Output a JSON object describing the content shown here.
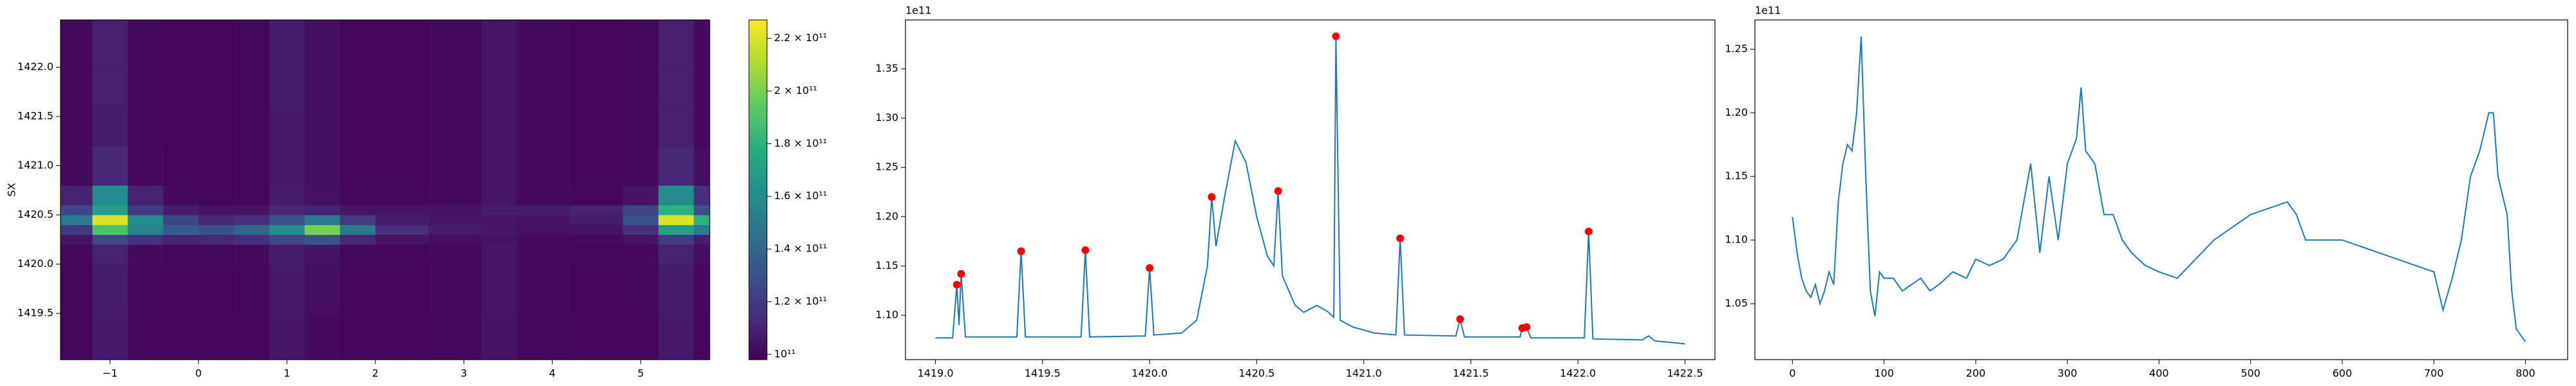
{
  "chart_data": [
    {
      "type": "heatmap",
      "ylabel": "SX",
      "colormap": "viridis",
      "xlim": [
        -1.56,
        5.78
      ],
      "ylim": [
        1419.03,
        1422.48
      ],
      "xticks": [
        {
          "value": -1,
          "label": "−1"
        },
        0,
        1,
        2,
        3,
        4,
        5
      ],
      "yticks": [
        1419.5,
        {
          "value": 1420.0,
          "label": "1420.0"
        },
        1420.5,
        {
          "value": 1421.0,
          "label": "1421.0"
        },
        1421.5,
        {
          "value": 1422.0,
          "label": "1422.0"
        }
      ],
      "x_edges": [
        -1.56,
        -1.2,
        -0.8,
        -0.4,
        0,
        0.4,
        0.8,
        1.2,
        1.6,
        2.0,
        2.6,
        3.2,
        3.6,
        4.2,
        4.8,
        5.2,
        5.6,
        5.78
      ],
      "y_edges": [
        1419.03,
        1419.5,
        1420.0,
        1420.2,
        1420.3,
        1420.4,
        1420.5,
        1420.6,
        1420.8,
        1421.2,
        1421.6,
        1422.0,
        1422.48
      ],
      "z": [
        [
          100000000000.0,
          107000000000.0,
          100000000000.0,
          100000000000.0,
          100000000000.0,
          100000000000.0,
          106000000000.0,
          102000000000.0,
          100000000000.0,
          100000000000.0,
          101000000000.0,
          105000000000.0,
          101000000000.0,
          100000000000.0,
          100000000000.0,
          107000000000.0,
          101000000000.0
        ],
        [
          100000000000.0,
          108000000000.0,
          101000000000.0,
          100000000000.0,
          100000000000.0,
          101000000000.0,
          107000000000.0,
          103000000000.0,
          100000000000.0,
          100000000000.0,
          102000000000.0,
          106000000000.0,
          102000000000.0,
          100000000000.0,
          101000000000.0,
          108000000000.0,
          102000000000.0
        ],
        [
          101000000000.0,
          110000000000.0,
          102000000000.0,
          101000000000.0,
          101000000000.0,
          102000000000.0,
          108000000000.0,
          105000000000.0,
          101000000000.0,
          101000000000.0,
          102000000000.0,
          106000000000.0,
          102000000000.0,
          101000000000.0,
          102000000000.0,
          110000000000.0,
          103000000000.0
        ],
        [
          105000000000.0,
          125000000000.0,
          115000000000.0,
          110000000000.0,
          112000000000.0,
          115000000000.0,
          125000000000.0,
          130000000000.0,
          112000000000.0,
          105000000000.0,
          103000000000.0,
          105000000000.0,
          102000000000.0,
          102000000000.0,
          105000000000.0,
          120000000000.0,
          108000000000.0
        ],
        [
          120000000000.0,
          190000000000.0,
          155000000000.0,
          135000000000.0,
          130000000000.0,
          140000000000.0,
          160000000000.0,
          200000000000.0,
          150000000000.0,
          115000000000.0,
          108000000000.0,
          106000000000.0,
          104000000000.0,
          105000000000.0,
          115000000000.0,
          170000000000.0,
          150000000000.0
        ],
        [
          150000000000.0,
          220000000000.0,
          160000000000.0,
          125000000000.0,
          112000000000.0,
          115000000000.0,
          130000000000.0,
          150000000000.0,
          120000000000.0,
          108000000000.0,
          106000000000.0,
          106000000000.0,
          105000000000.0,
          108000000000.0,
          130000000000.0,
          220000000000.0,
          180000000000.0
        ],
        [
          125000000000.0,
          170000000000.0,
          120000000000.0,
          108000000000.0,
          105000000000.0,
          105000000000.0,
          112000000000.0,
          110000000000.0,
          105000000000.0,
          105000000000.0,
          105000000000.0,
          108000000000.0,
          108000000000.0,
          110000000000.0,
          125000000000.0,
          180000000000.0,
          130000000000.0
        ],
        [
          110000000000.0,
          160000000000.0,
          110000000000.0,
          102000000000.0,
          100000000000.0,
          101000000000.0,
          108000000000.0,
          104000000000.0,
          101000000000.0,
          101000000000.0,
          102000000000.0,
          106000000000.0,
          102000000000.0,
          101000000000.0,
          105000000000.0,
          160000000000.0,
          115000000000.0
        ],
        [
          102000000000.0,
          112000000000.0,
          102000000000.0,
          100000000000.0,
          100000000000.0,
          101000000000.0,
          107000000000.0,
          103000000000.0,
          100000000000.0,
          100000000000.0,
          102000000000.0,
          106000000000.0,
          102000000000.0,
          100000000000.0,
          101000000000.0,
          112000000000.0,
          103000000000.0
        ],
        [
          101000000000.0,
          108000000000.0,
          101000000000.0,
          100000000000.0,
          100000000000.0,
          101000000000.0,
          107000000000.0,
          103000000000.0,
          100000000000.0,
          100000000000.0,
          102000000000.0,
          106000000000.0,
          102000000000.0,
          100000000000.0,
          101000000000.0,
          109000000000.0,
          102000000000.0
        ],
        [
          101000000000.0,
          109000000000.0,
          101000000000.0,
          100000000000.0,
          100000000000.0,
          101000000000.0,
          108000000000.0,
          103000000000.0,
          100000000000.0,
          100000000000.0,
          102000000000.0,
          106000000000.0,
          102000000000.0,
          100000000000.0,
          101000000000.0,
          109000000000.0,
          102000000000.0
        ],
        [
          101000000000.0,
          109000000000.0,
          101000000000.0,
          100000000000.0,
          100000000000.0,
          101000000000.0,
          108000000000.0,
          103000000000.0,
          100000000000.0,
          100000000000.0,
          102000000000.0,
          106000000000.0,
          102000000000.0,
          100000000000.0,
          101000000000.0,
          109000000000.0,
          102000000000.0
        ]
      ],
      "clim": [
        98000000000.0,
        227000000000.0
      ],
      "cticks": [
        {
          "value": 100000000000.0,
          "label": "10¹¹"
        },
        {
          "value": 120000000000.0,
          "label": "1.2 × 10¹¹"
        },
        {
          "value": 140000000000.0,
          "label": "1.4 × 10¹¹"
        },
        {
          "value": 160000000000.0,
          "label": "1.6 × 10¹¹"
        },
        {
          "value": 180000000000.0,
          "label": "1.8 × 10¹¹"
        },
        {
          "value": 200000000000.0,
          "label": "2 × 10¹¹"
        },
        {
          "value": 220000000000.0,
          "label": "2.2 × 10¹¹"
        }
      ]
    },
    {
      "type": "line",
      "y_offset_label": "1e11",
      "xlim": [
        1418.86,
        1422.64
      ],
      "ylim": [
        1.055,
        1.3996
      ],
      "xticks": [
        {
          "value": 1419.0,
          "label": "1419.0"
        },
        1419.5,
        {
          "value": 1420.0,
          "label": "1420.0"
        },
        1420.5,
        {
          "value": 1421.0,
          "label": "1421.0"
        },
        1421.5,
        {
          "value": 1422.0,
          "label": "1422.0"
        },
        1422.5
      ],
      "yticks": [
        {
          "value": 1.1,
          "label": "1.10"
        },
        1.15,
        {
          "value": 1.2,
          "label": "1.20"
        },
        1.25,
        {
          "value": 1.3,
          "label": "1.30"
        },
        1.35
      ],
      "series": [
        {
          "color": "#1f77b4",
          "x": [
            1419.0,
            1419.08,
            1419.1,
            1419.11,
            1419.12,
            1419.14,
            1419.38,
            1419.4,
            1419.42,
            1419.68,
            1419.7,
            1419.72,
            1419.98,
            1420.0,
            1420.02,
            1420.15,
            1420.22,
            1420.27,
            1420.29,
            1420.31,
            1420.35,
            1420.4,
            1420.45,
            1420.5,
            1420.55,
            1420.58,
            1420.6,
            1420.62,
            1420.68,
            1420.72,
            1420.78,
            1420.83,
            1420.86,
            1420.87,
            1420.89,
            1420.95,
            1421.05,
            1421.15,
            1421.17,
            1421.19,
            1421.43,
            1421.45,
            1421.47,
            1421.73,
            1421.74,
            1421.76,
            1421.78,
            1422.03,
            1422.05,
            1422.07,
            1422.3,
            1422.33,
            1422.36,
            1422.5
          ],
          "values": [
            1.077,
            1.077,
            1.131,
            1.09,
            1.142,
            1.078,
            1.078,
            1.165,
            1.078,
            1.078,
            1.166,
            1.078,
            1.079,
            1.148,
            1.08,
            1.082,
            1.095,
            1.15,
            1.22,
            1.17,
            1.22,
            1.277,
            1.255,
            1.2,
            1.16,
            1.15,
            1.226,
            1.14,
            1.11,
            1.103,
            1.11,
            1.104,
            1.098,
            1.383,
            1.095,
            1.088,
            1.082,
            1.08,
            1.178,
            1.08,
            1.079,
            1.096,
            1.078,
            1.078,
            1.087,
            1.088,
            1.077,
            1.077,
            1.185,
            1.076,
            1.075,
            1.079,
            1.074,
            1.071
          ]
        },
        {
          "color": "#ff0000",
          "marker": "point",
          "x": [
            1419.1,
            1419.12,
            1419.4,
            1419.7,
            1420.0,
            1420.29,
            1420.6,
            1420.87,
            1421.17,
            1421.45,
            1421.74,
            1421.76,
            1422.05
          ],
          "values": [
            1.131,
            1.142,
            1.165,
            1.166,
            1.148,
            1.22,
            1.226,
            1.383,
            1.178,
            1.096,
            1.087,
            1.088,
            1.185
          ]
        }
      ]
    },
    {
      "type": "line",
      "y_offset_label": "1e11",
      "xlim": [
        -41,
        846
      ],
      "ylim": [
        1.006,
        1.273
      ],
      "xticks": [
        0,
        100,
        200,
        300,
        400,
        500,
        600,
        700,
        800
      ],
      "yticks": [
        1.05,
        {
          "value": 1.1,
          "label": "1.10"
        },
        1.15,
        {
          "value": 1.2,
          "label": "1.20"
        },
        1.25
      ],
      "series": [
        {
          "color": "#1f77b4",
          "x": [
            0,
            5,
            10,
            15,
            20,
            25,
            30,
            35,
            40,
            45,
            50,
            55,
            60,
            65,
            70,
            75,
            80,
            85,
            90,
            95,
            100,
            110,
            120,
            130,
            140,
            150,
            160,
            175,
            190,
            200,
            215,
            230,
            245,
            260,
            270,
            280,
            290,
            300,
            310,
            315,
            320,
            330,
            340,
            350,
            360,
            370,
            385,
            400,
            420,
            440,
            460,
            480,
            500,
            520,
            540,
            550,
            560,
            580,
            600,
            620,
            640,
            660,
            680,
            700,
            710,
            720,
            730,
            740,
            750,
            760,
            765,
            770,
            780,
            785,
            790,
            800
          ],
          "values": [
            1.118,
            1.09,
            1.07,
            1.06,
            1.055,
            1.065,
            1.05,
            1.06,
            1.075,
            1.065,
            1.13,
            1.16,
            1.175,
            1.17,
            1.2,
            1.26,
            1.15,
            1.06,
            1.04,
            1.075,
            1.07,
            1.07,
            1.06,
            1.065,
            1.07,
            1.06,
            1.065,
            1.075,
            1.07,
            1.085,
            1.08,
            1.085,
            1.1,
            1.16,
            1.09,
            1.15,
            1.1,
            1.16,
            1.18,
            1.22,
            1.17,
            1.16,
            1.12,
            1.12,
            1.1,
            1.09,
            1.08,
            1.075,
            1.07,
            1.085,
            1.1,
            1.11,
            1.12,
            1.125,
            1.13,
            1.12,
            1.1,
            1.1,
            1.1,
            1.095,
            1.09,
            1.085,
            1.08,
            1.075,
            1.045,
            1.07,
            1.1,
            1.15,
            1.17,
            1.2,
            1.2,
            1.15,
            1.12,
            1.06,
            1.03,
            1.02
          ]
        }
      ]
    }
  ]
}
